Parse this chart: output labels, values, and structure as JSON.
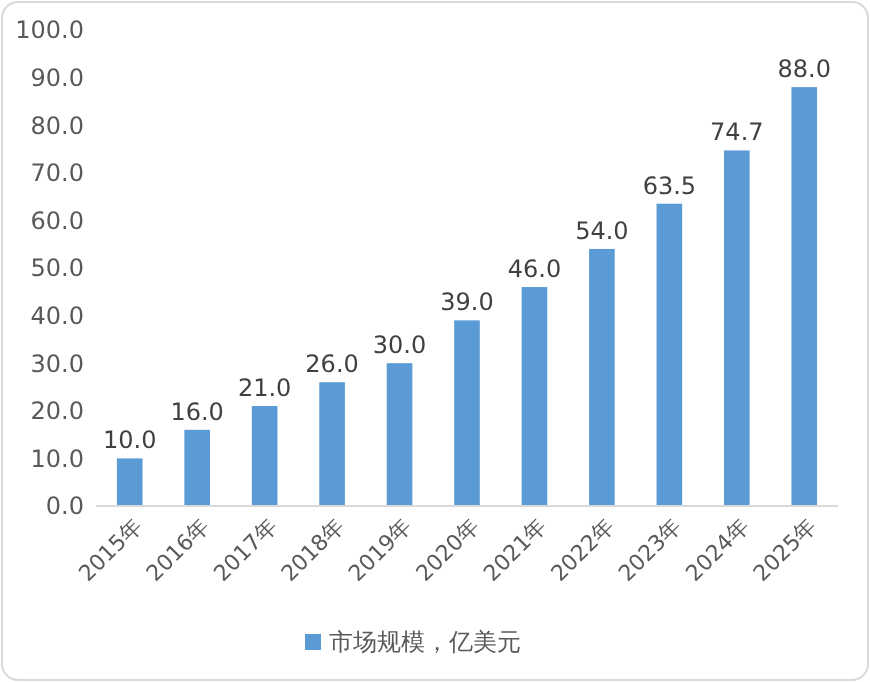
{
  "chart_data": {
    "type": "bar",
    "categories": [
      "2015年",
      "2016年",
      "2017年",
      "2018年",
      "2019年",
      "2020年",
      "2021年",
      "2022年",
      "2023年",
      "2024年",
      "2025年"
    ],
    "series": [
      {
        "name": "市场规模，亿美元",
        "color": "#5b9bd5",
        "values": [
          10,
          16,
          21,
          26,
          30,
          39,
          46,
          54,
          63.5,
          74.7,
          88
        ],
        "value_labels": [
          "10.0",
          "16.0",
          "21.0",
          "26.0",
          "30.0",
          "39.0",
          "46.0",
          "54.0",
          "63.5",
          "74.7",
          "88.0"
        ]
      }
    ],
    "ylim": [
      0,
      100
    ],
    "yticks": [
      {
        "value": 0,
        "label": "0.0"
      },
      {
        "value": 10,
        "label": "10.0"
      },
      {
        "value": 20,
        "label": "20.0"
      },
      {
        "value": 30,
        "label": "30.0"
      },
      {
        "value": 40,
        "label": "40.0"
      },
      {
        "value": 50,
        "label": "50.0"
      },
      {
        "value": 60,
        "label": "60.0"
      },
      {
        "value": 70,
        "label": "70.0"
      },
      {
        "value": 80,
        "label": "80.0"
      },
      {
        "value": 90,
        "label": "90.0"
      },
      {
        "value": 100,
        "label": "100.0"
      }
    ],
    "grid": false,
    "legend": "bottom"
  }
}
